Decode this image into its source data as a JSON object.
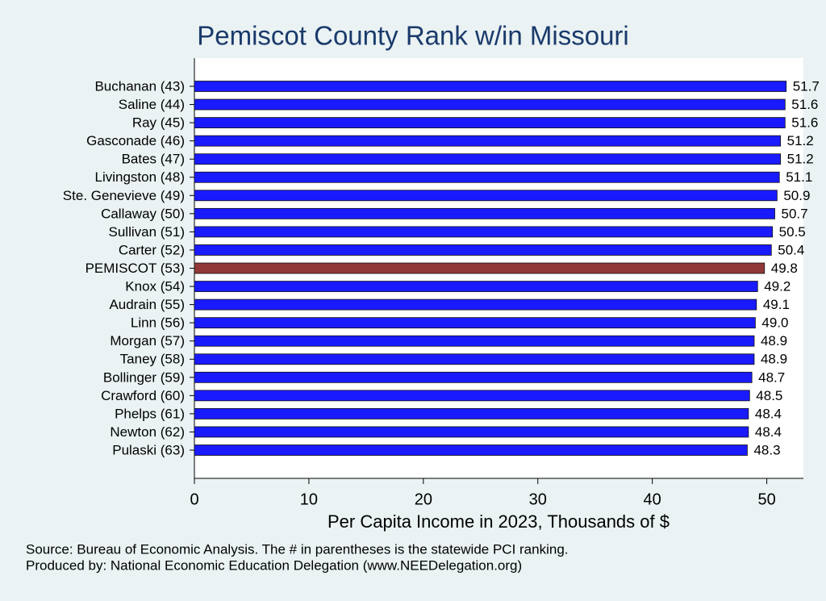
{
  "chart_data": {
    "type": "barh",
    "title": "Pemiscot County Rank w/in Missouri",
    "xlabel": "Per Capita Income in 2023, Thousands of $",
    "notes": [
      "Source: Bureau of Economic Analysis. The # in parentheses is the statewide PCI ranking.",
      "Produced by: National Economic Education Delegation (www.NEEDelegation.org)"
    ],
    "categories": [
      "Buchanan (43)",
      "Saline (44)",
      "Ray (45)",
      "Gasconade (46)",
      "Bates (47)",
      "Livingston (48)",
      "Ste. Genevieve (49)",
      "Callaway (50)",
      "Sullivan (51)",
      "Carter (52)",
      "PEMISCOT (53)",
      "Knox (54)",
      "Audrain (55)",
      "Linn (56)",
      "Morgan (57)",
      "Taney (58)",
      "Bollinger (59)",
      "Crawford (60)",
      "Phelps (61)",
      "Newton (62)",
      "Pulaski (63)"
    ],
    "values": [
      51.7,
      51.6,
      51.6,
      51.2,
      51.2,
      51.1,
      50.9,
      50.7,
      50.5,
      50.4,
      49.8,
      49.2,
      49.1,
      49.0,
      48.9,
      48.9,
      48.7,
      48.5,
      48.4,
      48.4,
      48.3
    ],
    "value_labels": [
      "51.7",
      "51.6",
      "51.6",
      "51.2",
      "51.2",
      "51.1",
      "50.9",
      "50.7",
      "50.5",
      "50.4",
      "49.8",
      "49.2",
      "49.1",
      "49.0",
      "48.9",
      "48.9",
      "48.7",
      "48.5",
      "48.4",
      "48.4",
      "48.3"
    ],
    "colors": [
      "#1a1aff",
      "#1a1aff",
      "#1a1aff",
      "#1a1aff",
      "#1a1aff",
      "#1a1aff",
      "#1a1aff",
      "#1a1aff",
      "#1a1aff",
      "#1a1aff",
      "#903838",
      "#1a1aff",
      "#1a1aff",
      "#1a1aff",
      "#1a1aff",
      "#1a1aff",
      "#1a1aff",
      "#1a1aff",
      "#1a1aff",
      "#1a1aff",
      "#1a1aff"
    ],
    "xlim": [
      0,
      53.2
    ],
    "xticks": [
      0,
      10,
      20,
      30,
      40,
      50
    ]
  }
}
